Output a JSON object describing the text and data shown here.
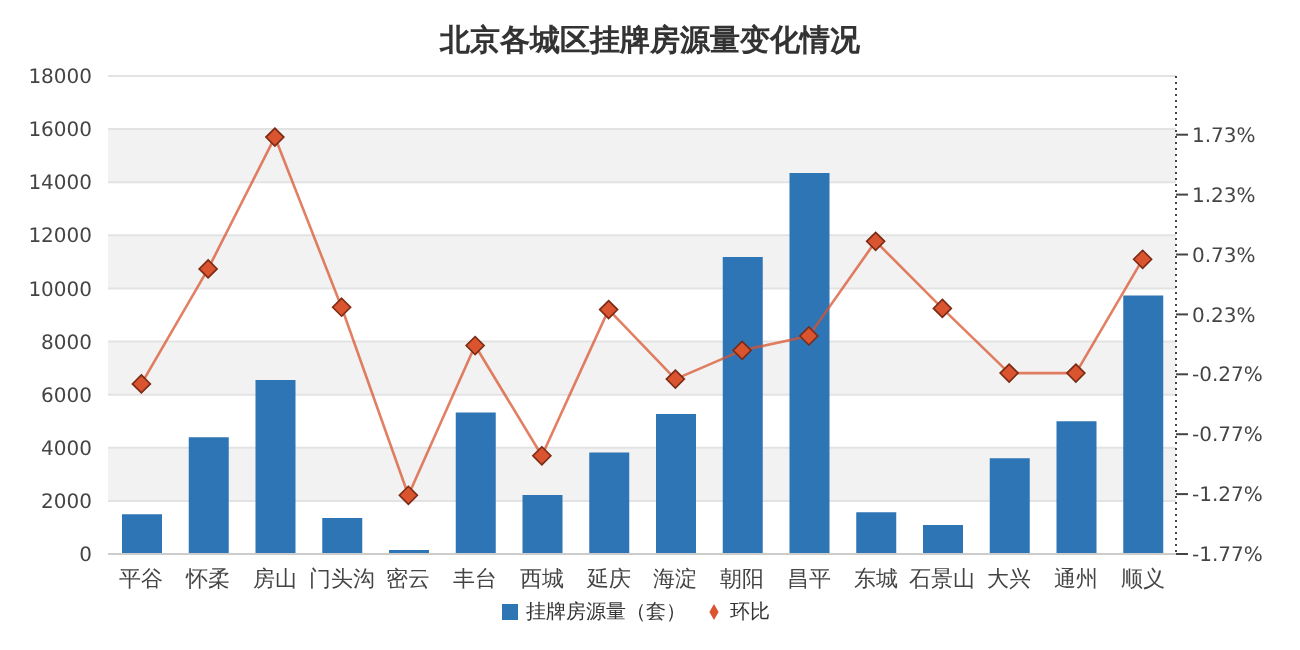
{
  "chart_data": {
    "type": "bar",
    "title": "北京各城区挂牌房源量变化情况",
    "categories": [
      "平谷",
      "怀柔",
      "房山",
      "门头沟",
      "密云",
      "丰台",
      "西城",
      "延庆",
      "海淀",
      "朝阳",
      "昌平",
      "东城",
      "石景山",
      "大兴",
      "通州",
      "顺义"
    ],
    "series": [
      {
        "name": "挂牌房源量（套）",
        "color": "#2e75b6",
        "values": [
          1500,
          4400,
          6550,
          1360,
          150,
          5330,
          2220,
          3820,
          5270,
          11180,
          14350,
          1570,
          1090,
          3610,
          5000,
          9730
        ]
      },
      {
        "name": "环比",
        "type": "line",
        "axis": "y2",
        "color": "#d9542f",
        "marker": "diamond",
        "values": [
          -0.35,
          0.61,
          1.71,
          0.29,
          -1.28,
          -0.03,
          -0.95,
          0.27,
          -0.31,
          -0.07,
          0.05,
          0.84,
          0.28,
          -0.26,
          -0.26,
          0.69
        ]
      }
    ],
    "ylim": [
      0,
      18000
    ],
    "yticks": [
      0,
      2000,
      4000,
      6000,
      8000,
      10000,
      12000,
      14000,
      16000,
      18000
    ],
    "y2lim": [
      -1.77,
      2.22
    ],
    "y2ticks": [
      {
        "value": -1.77,
        "label": "-1.77%"
      },
      {
        "value": -1.27,
        "label": "-1.27%"
      },
      {
        "value": -0.77,
        "label": "-0.77%"
      },
      {
        "value": -0.27,
        "label": "-0.27%"
      },
      {
        "value": 0.23,
        "label": "0.23%"
      },
      {
        "value": 0.73,
        "label": "0.73%"
      },
      {
        "value": 1.23,
        "label": "1.23%"
      },
      {
        "value": 1.73,
        "label": "1.73%"
      }
    ],
    "grid": "y",
    "legend": "bottom"
  }
}
